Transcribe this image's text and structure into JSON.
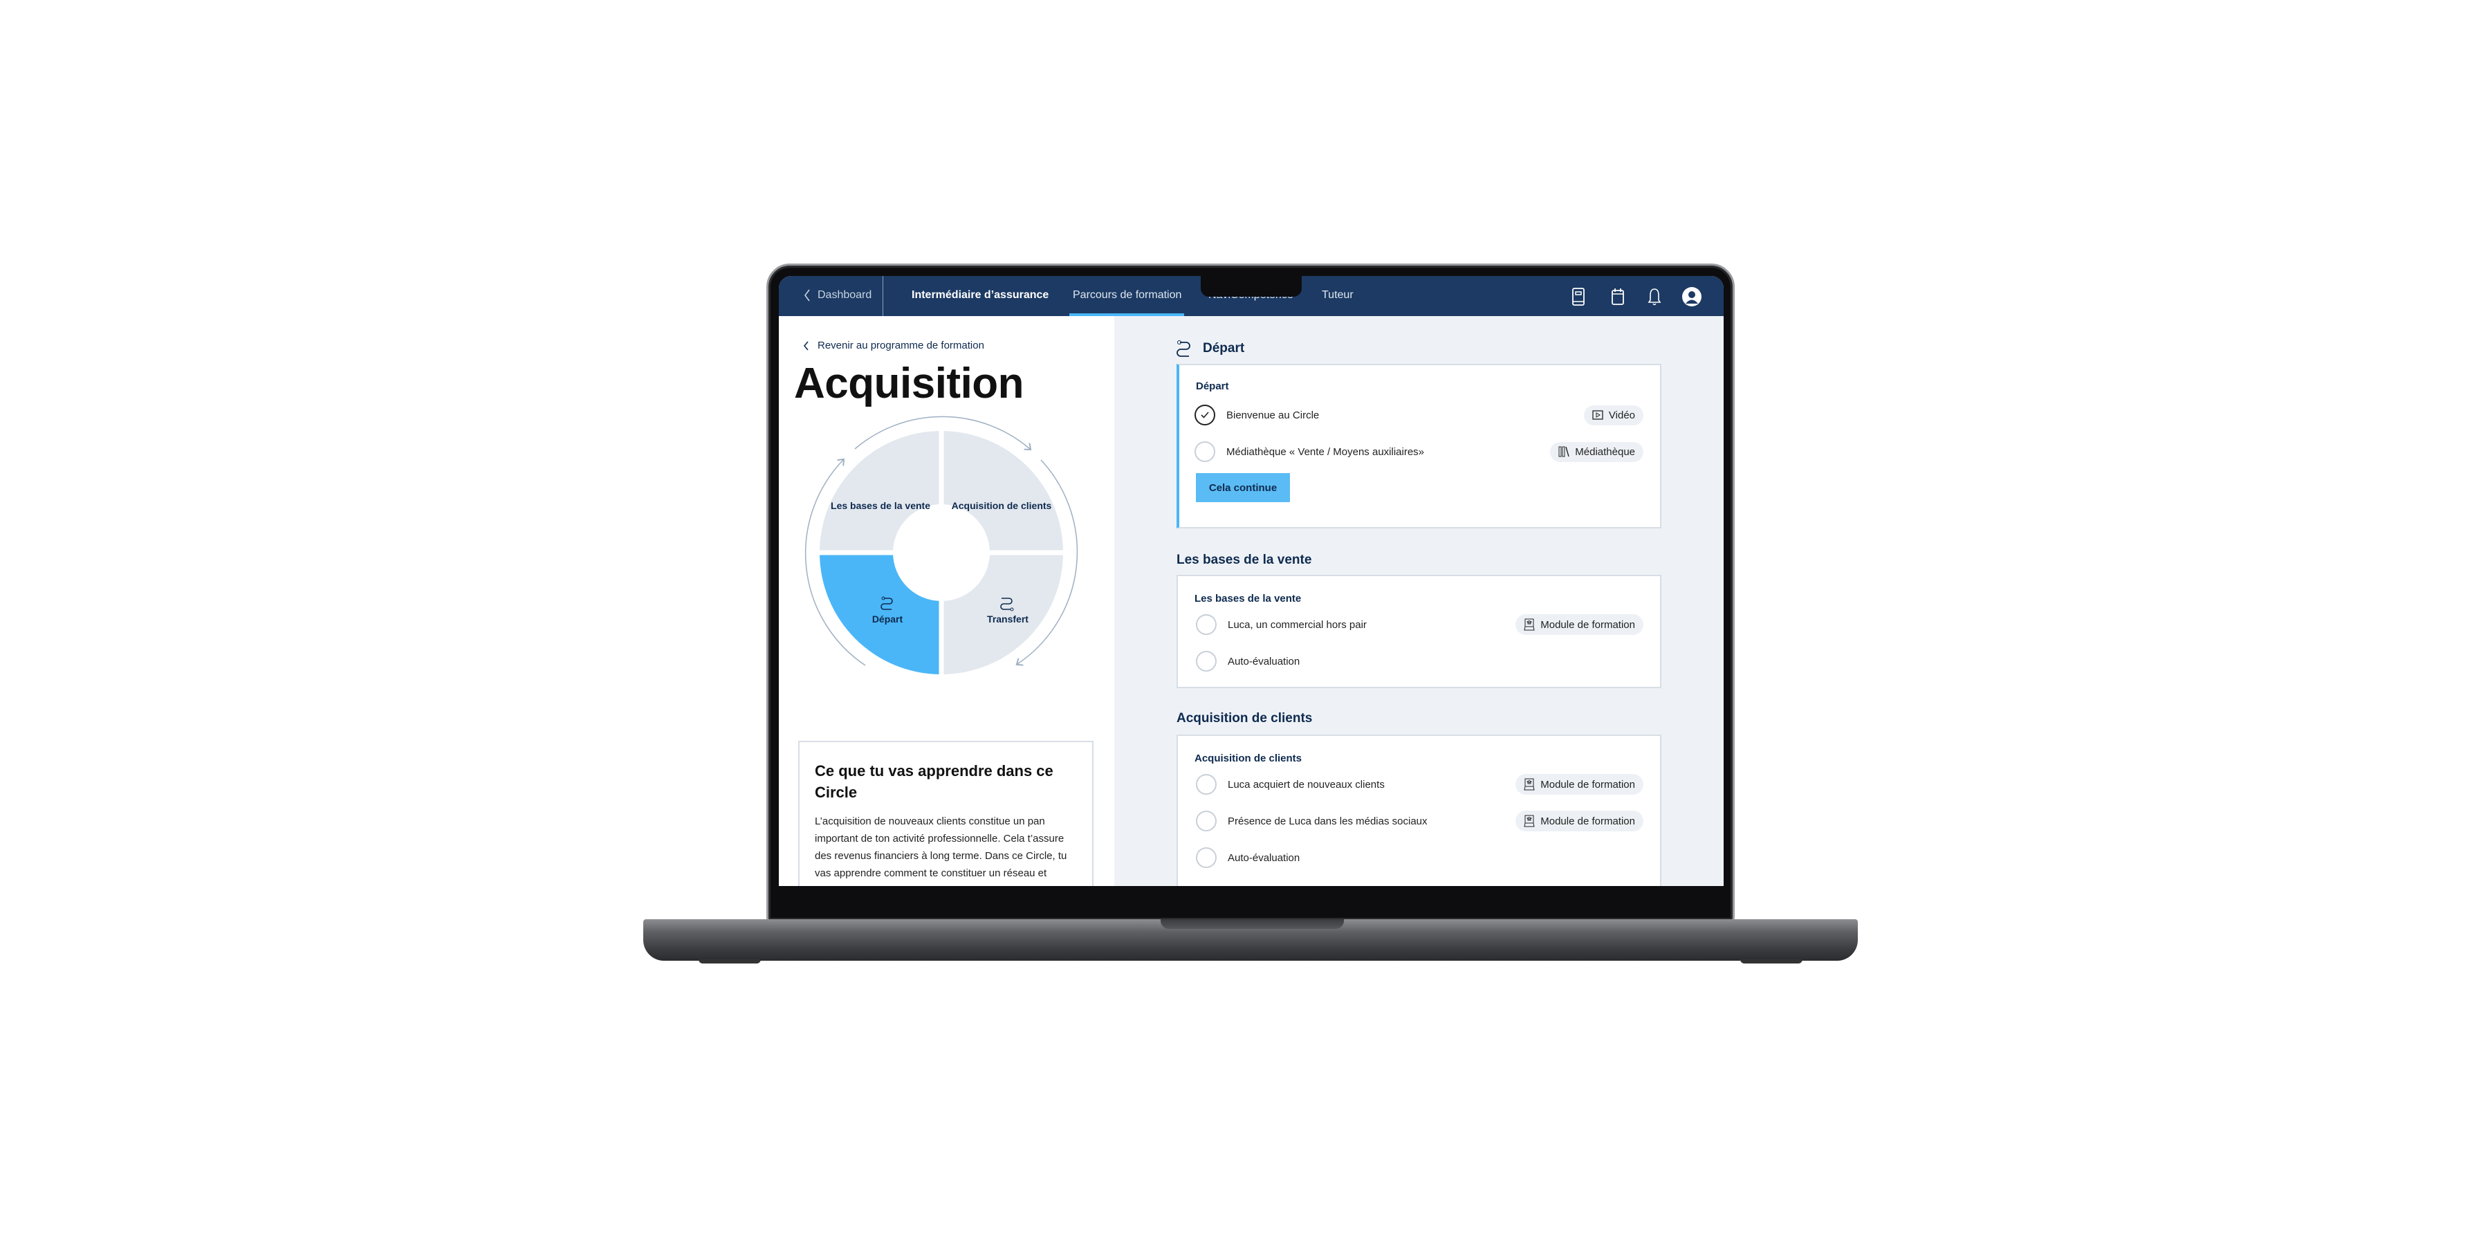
{
  "nav": {
    "back_label": "Dashboard",
    "title": "Intermédiaire d’assurance",
    "tabs": [
      {
        "label": "Parcours de formation",
        "active": true
      },
      {
        "label": "NaviCompetence",
        "active": false
      },
      {
        "label": "Tuteur",
        "active": false
      }
    ],
    "icons": [
      "book-icon",
      "calendar-icon",
      "bell-icon",
      "avatar"
    ]
  },
  "left": {
    "back_link": "Revenir au programme de formation",
    "title": "Acquisition",
    "circle": {
      "segments": [
        {
          "label": "Les bases de la vente",
          "active": false
        },
        {
          "label": "Acquisition de clients",
          "active": false
        },
        {
          "label": "Départ",
          "active": true,
          "icon": "route-icon"
        },
        {
          "label": "Transfert",
          "active": false,
          "icon": "route-icon"
        }
      ]
    },
    "info": {
      "title": "Ce que tu vas apprendre dans ce Circle",
      "body": "L’acquisition de nouveaux clients constitue un pan important de ton activité professionnelle. Cela t’assure des revenus financiers à long terme. Dans ce Circle, tu vas apprendre comment te constituer un réseau et d’élargir ton portefeuille de nouveaux clients."
    }
  },
  "sections": [
    {
      "heading": "Départ",
      "card_label": "Départ",
      "items": [
        {
          "label": "Bienvenue au Circle",
          "done": true,
          "tag": "Vidéo",
          "tag_icon": "video-icon"
        },
        {
          "label": "Médiathèque « Vente / Moyens auxiliaires»",
          "done": false,
          "tag": "Médiathèque",
          "tag_icon": "library-icon"
        }
      ],
      "button": "Cela continue"
    },
    {
      "heading": "Les bases de la vente",
      "card_label": "Les bases de la vente",
      "items": [
        {
          "label": "Luca, un commercial hors pair",
          "done": false,
          "tag": "Module de formation",
          "tag_icon": "training-module-icon"
        },
        {
          "label": "Auto-évaluation",
          "done": false
        }
      ]
    },
    {
      "heading": "Acquisition de clients",
      "card_label": "Acquisition de clients",
      "items": [
        {
          "label": "Luca acquiert de nouveaux clients",
          "done": false,
          "tag": "Module de formation",
          "tag_icon": "training-module-icon"
        },
        {
          "label": "Présence de Luca dans les médias sociaux",
          "done": false,
          "tag": "Module de formation",
          "tag_icon": "training-module-icon"
        },
        {
          "label": "Auto-évaluation",
          "done": false
        }
      ]
    }
  ],
  "colors": {
    "nav": "#1c3a63",
    "accent": "#4ab6f7",
    "segment": "#e3e8ee",
    "text": "#0e2a4f"
  }
}
